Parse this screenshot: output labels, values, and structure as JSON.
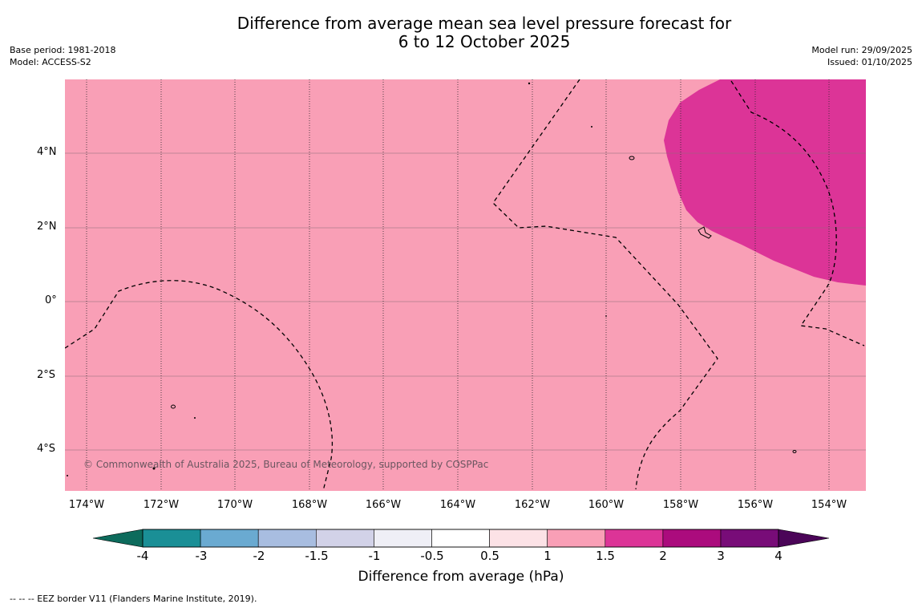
{
  "title": {
    "line1": "Difference from average mean sea level pressure forecast for",
    "line2": "6 to 12 October 2025"
  },
  "meta_left": {
    "base_period": "Base period: 1981-2018",
    "model": "Model: ACCESS-S2"
  },
  "meta_right": {
    "model_run": "Model run: 29/09/2025",
    "issued": "Issued: 01/10/2025"
  },
  "map": {
    "lat_labels": [
      "4°N",
      "2°N",
      "0°",
      "2°S",
      "4°S"
    ],
    "lon_labels": [
      "174°W",
      "172°W",
      "170°W",
      "168°W",
      "166°W",
      "164°W",
      "162°W",
      "160°W",
      "158°W",
      "156°W",
      "154°W"
    ],
    "credit": "© Commonwealth of Australia 2025, Bureau of Meteorology, supported by COSPPac",
    "background_color": "#f99fb6",
    "high_anomaly_color": "#dc3497"
  },
  "colorbar": {
    "labels": [
      "-4",
      "-3",
      "-2",
      "-1.5",
      "-1",
      "-0.5",
      "0.5",
      "1",
      "1.5",
      "2",
      "3",
      "4"
    ],
    "colors": [
      "#0d6b5c",
      "#1a8f96",
      "#6aaad1",
      "#a8bde0",
      "#d2d2e8",
      "#efeff6",
      "#ffffff",
      "#fce2e6",
      "#f99fb6",
      "#dc3497",
      "#ab0b7d",
      "#780c78",
      "#4b0558"
    ],
    "title": "Difference from average (hPa)"
  },
  "footer": {
    "eez": "--  --  -- EEZ border V11 (Flanders Marine Institute, 2019)."
  }
}
